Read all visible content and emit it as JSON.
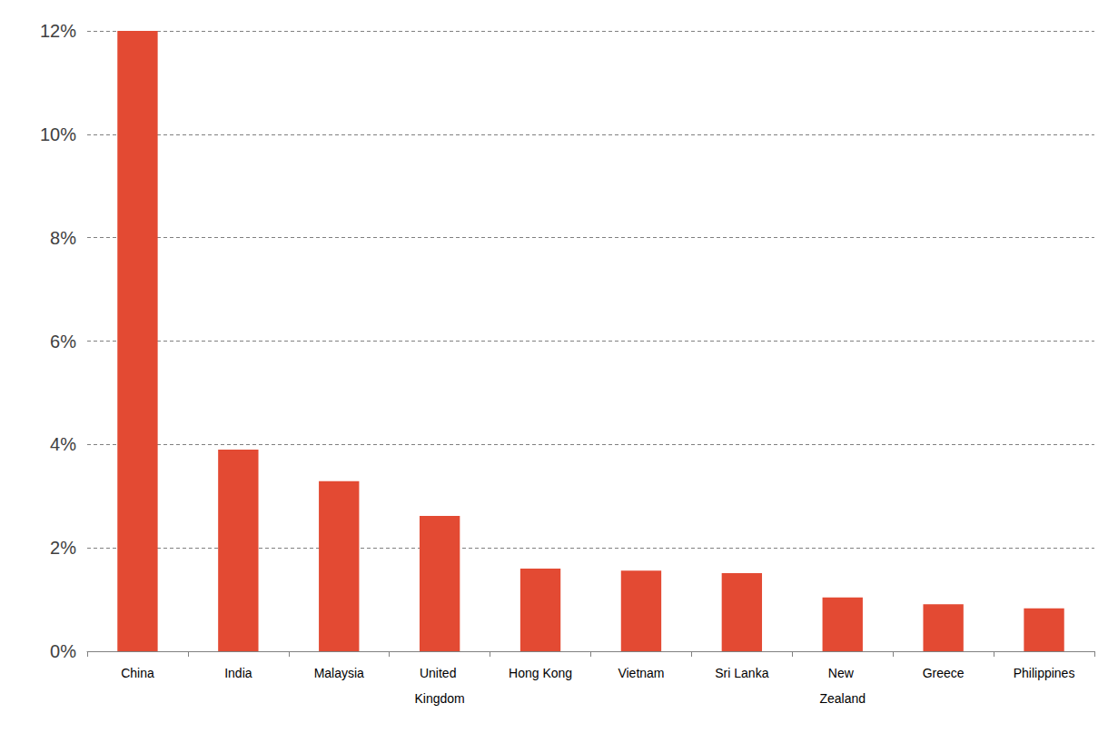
{
  "chart_data": {
    "type": "bar",
    "categories": [
      "China",
      "India",
      "Malaysia",
      "United Kingdom",
      "Hong Kong",
      "Vietnam",
      "Sri Lanka",
      "New Zealand",
      "Greece",
      "Philippines"
    ],
    "values": [
      12.0,
      3.9,
      3.29,
      2.62,
      1.6,
      1.56,
      1.51,
      1.04,
      0.91,
      0.83
    ],
    "color": "#e34a33",
    "ylim": [
      0,
      12
    ],
    "yticks": [
      {
        "value": 0,
        "label": "0%"
      },
      {
        "value": 2,
        "label": "2%"
      },
      {
        "value": 4,
        "label": "4%"
      },
      {
        "value": 6,
        "label": "6%"
      },
      {
        "value": 8,
        "label": "8%"
      },
      {
        "value": 10,
        "label": "10%"
      },
      {
        "value": 12,
        "label": "12%"
      }
    ],
    "grid": true
  }
}
